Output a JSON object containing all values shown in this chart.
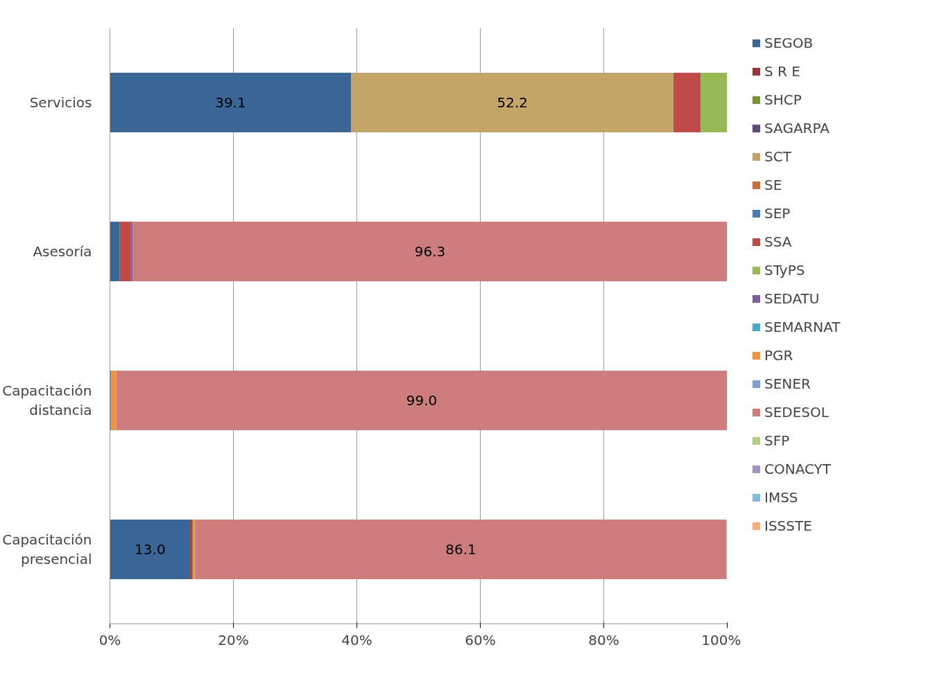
{
  "chart_data": {
    "type": "bar",
    "orientation": "horizontal",
    "stacked": true,
    "categories": [
      "Servicios",
      "Asesoría",
      "Capacitación distancia",
      "Capacitación presencial"
    ],
    "series": [
      {
        "name": "SEGOB",
        "color": "#3c6598",
        "values": [
          39.1,
          1.6,
          null,
          13.0
        ],
        "value_labels": [
          "39.1",
          null,
          null,
          "13.0"
        ]
      },
      {
        "name": "S R E",
        "color": "#953735",
        "values": [
          null,
          null,
          null,
          0.3
        ]
      },
      {
        "name": "SHCP",
        "color": "#77933c",
        "values": [
          null,
          null,
          null,
          0.2
        ]
      },
      {
        "name": "SAGARPA",
        "color": "#604a7b",
        "values": [
          null,
          null,
          null,
          null
        ]
      },
      {
        "name": "SCT",
        "color": "#c4a468",
        "values": [
          52.2,
          null,
          null,
          null
        ],
        "value_labels": [
          "52.2",
          null,
          null,
          null
        ]
      },
      {
        "name": "SE",
        "color": "#c77236",
        "values": [
          null,
          null,
          null,
          null
        ]
      },
      {
        "name": "SEP",
        "color": "#4a7ebb",
        "values": [
          null,
          null,
          0.2,
          null
        ]
      },
      {
        "name": "SSA",
        "color": "#be4b48",
        "values": [
          4.4,
          1.8,
          null,
          null
        ]
      },
      {
        "name": "STyPS",
        "color": "#98b954",
        "values": [
          4.3,
          null,
          null,
          null
        ]
      },
      {
        "name": "SEDATU",
        "color": "#7d60a0",
        "values": [
          null,
          0.3,
          null,
          null
        ]
      },
      {
        "name": "SEMARNAT",
        "color": "#46aac5",
        "values": [
          null,
          null,
          null,
          null
        ]
      },
      {
        "name": "PGR",
        "color": "#f0923e",
        "values": [
          null,
          null,
          0.8,
          0.3
        ]
      },
      {
        "name": "SENER",
        "color": "#7f9fd0",
        "values": [
          null,
          null,
          null,
          null
        ]
      },
      {
        "name": "SEDESOL",
        "color": "#cd7d7b",
        "values": [
          null,
          96.3,
          99.0,
          86.1
        ],
        "value_labels": [
          null,
          "96.3",
          "99.0",
          "86.1"
        ]
      },
      {
        "name": "SFP",
        "color": "#b1cd8a",
        "values": [
          null,
          null,
          null,
          null
        ]
      },
      {
        "name": "CONACYT",
        "color": "#a293bf",
        "values": [
          null,
          null,
          null,
          null
        ]
      },
      {
        "name": "IMSS",
        "color": "#7fc0d8",
        "values": [
          null,
          null,
          null,
          null
        ]
      },
      {
        "name": "ISSSTE",
        "color": "#fbad7c",
        "values": [
          null,
          null,
          null,
          null
        ]
      }
    ],
    "xlim": [
      0,
      100
    ],
    "xticks": [
      {
        "value": 0,
        "label": "0%"
      },
      {
        "value": 20,
        "label": "20%"
      },
      {
        "value": 40,
        "label": "40%"
      },
      {
        "value": 60,
        "label": "60%"
      },
      {
        "value": 80,
        "label": "80%"
      },
      {
        "value": 100,
        "label": "100%"
      }
    ],
    "grid": "x",
    "legend": "right"
  }
}
